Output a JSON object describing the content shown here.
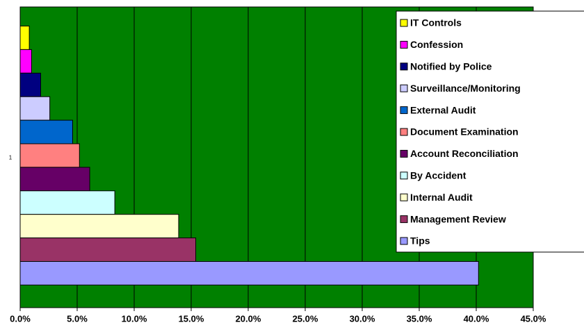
{
  "chart_data": {
    "type": "bar",
    "orientation": "horizontal",
    "categories": [
      "1"
    ],
    "series": [
      {
        "name": "IT Controls",
        "color": "#ffff00",
        "values": [
          0.8
        ]
      },
      {
        "name": "Confession",
        "color": "#ff00ff",
        "values": [
          1.0
        ]
      },
      {
        "name": "Notified by Police",
        "color": "#000080",
        "values": [
          1.8
        ]
      },
      {
        "name": "Surveillance/Monitoring",
        "color": "#ccccff",
        "values": [
          2.6
        ]
      },
      {
        "name": "External Audit",
        "color": "#0066cc",
        "values": [
          4.6
        ]
      },
      {
        "name": "Document Examination",
        "color": "#ff8080",
        "values": [
          5.2
        ]
      },
      {
        "name": "Account Reconciliation",
        "color": "#660066",
        "values": [
          6.1
        ]
      },
      {
        "name": "By Accident",
        "color": "#ccffff",
        "values": [
          8.3
        ]
      },
      {
        "name": "Internal Audit",
        "color": "#ffffcc",
        "values": [
          13.9
        ]
      },
      {
        "name": "Management Review",
        "color": "#993366",
        "values": [
          15.4
        ]
      },
      {
        "name": "Tips",
        "color": "#9999ff",
        "values": [
          40.2
        ]
      }
    ],
    "xlim": [
      0,
      45
    ],
    "xticks": [
      {
        "value": 0,
        "label": "0.0%"
      },
      {
        "value": 5,
        "label": "5.0%"
      },
      {
        "value": 10,
        "label": "10.0%"
      },
      {
        "value": 15,
        "label": "15.0%"
      },
      {
        "value": 20,
        "label": "20.0%"
      },
      {
        "value": 25,
        "label": "25.0%"
      },
      {
        "value": 30,
        "label": "30.0%"
      },
      {
        "value": 35,
        "label": "35.0%"
      },
      {
        "value": 40,
        "label": "40.0%"
      },
      {
        "value": 45,
        "label": "45.0%"
      }
    ],
    "grid": true,
    "plot_background": "#008000",
    "legend": "right"
  }
}
